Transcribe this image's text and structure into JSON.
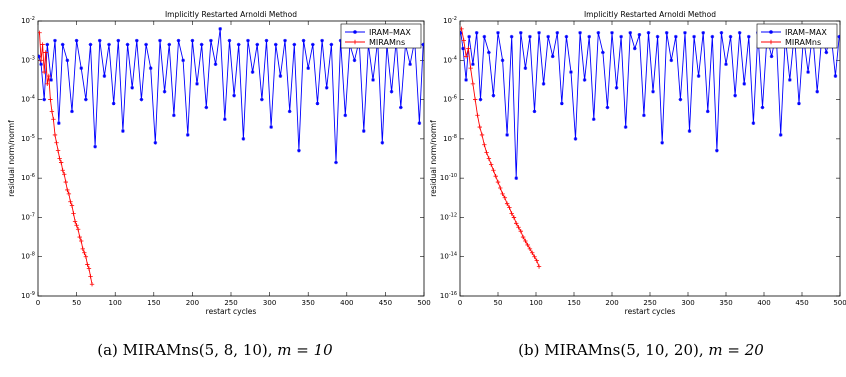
{
  "chart_data": [
    {
      "type": "line",
      "title": "Implicitly Restarted Arnoldi Method",
      "xlabel": "restart cycles",
      "ylabel": "residual norm/normf",
      "xlim": [
        0,
        500
      ],
      "yscale": "log",
      "ylim_exp": [
        -9,
        -2
      ],
      "xticks": [
        0,
        50,
        100,
        150,
        200,
        250,
        300,
        350,
        400,
        450,
        500
      ],
      "yticks": [
        "10^-9",
        "10^-8",
        "10^-7",
        "10^-6",
        "10^-5",
        "10^-4",
        "10^-3",
        "10^-2"
      ],
      "legend": "top-right",
      "caption_text": "(a) MIRAMns(5, 8, 10), ",
      "caption_math": "m = 10",
      "series": [
        {
          "name": "IRAM–MAX",
          "color": "#0000ff",
          "marker": "*",
          "x": [
            1,
            4,
            8,
            12,
            17,
            22,
            27,
            32,
            38,
            44,
            50,
            56,
            62,
            68,
            74,
            80,
            86,
            92,
            98,
            104,
            110,
            116,
            122,
            128,
            134,
            140,
            146,
            152,
            158,
            164,
            170,
            176,
            182,
            188,
            194,
            200,
            206,
            212,
            218,
            224,
            230,
            236,
            242,
            248,
            254,
            260,
            266,
            272,
            278,
            284,
            290,
            296,
            302,
            308,
            314,
            320,
            326,
            332,
            338,
            344,
            350,
            356,
            362,
            368,
            374,
            380,
            386,
            392,
            398,
            404,
            410,
            416,
            422,
            428,
            434,
            440,
            446,
            452,
            458,
            464,
            470,
            476,
            482,
            488,
            494,
            499
          ],
          "log10_y": [
            -2.9,
            -3.1,
            -4.0,
            -2.6,
            -3.5,
            -2.5,
            -4.6,
            -2.6,
            -3.0,
            -4.3,
            -2.5,
            -3.2,
            -4.0,
            -2.6,
            -5.2,
            -2.5,
            -3.4,
            -2.6,
            -4.1,
            -2.5,
            -4.8,
            -2.6,
            -3.7,
            -2.5,
            -4.0,
            -2.6,
            -3.2,
            -5.1,
            -2.5,
            -3.8,
            -2.6,
            -4.4,
            -2.5,
            -3.0,
            -4.9,
            -2.5,
            -3.6,
            -2.6,
            -4.2,
            -2.5,
            -3.1,
            -2.2,
            -4.5,
            -2.5,
            -3.9,
            -2.6,
            -5.0,
            -2.5,
            -3.3,
            -2.6,
            -4.0,
            -2.5,
            -4.7,
            -2.6,
            -3.4,
            -2.5,
            -4.3,
            -2.6,
            -5.3,
            -2.5,
            -3.2,
            -2.6,
            -4.1,
            -2.5,
            -3.7,
            -2.6,
            -5.6,
            -2.5,
            -4.4,
            -2.6,
            -3.0,
            -2.5,
            -4.8,
            -2.6,
            -3.5,
            -2.5,
            -5.1,
            -2.6,
            -3.8,
            -2.5,
            -4.2,
            -2.6,
            -3.1,
            -2.5,
            -4.6,
            -2.6
          ]
        },
        {
          "name": "MIRAMns",
          "color": "#ff0000",
          "marker": "+",
          "x": [
            2,
            4,
            6,
            8,
            10,
            12,
            14,
            16,
            18,
            20,
            22,
            24,
            26,
            28,
            30,
            32,
            34,
            36,
            38,
            40,
            42,
            44,
            46,
            48,
            50,
            52,
            54,
            56,
            58,
            60,
            62,
            64,
            66,
            68,
            70
          ],
          "log10_y": [
            -2.3,
            -3.0,
            -2.6,
            -3.3,
            -2.8,
            -3.6,
            -3.4,
            -4.0,
            -4.3,
            -4.5,
            -4.9,
            -5.1,
            -5.3,
            -5.5,
            -5.6,
            -5.8,
            -5.9,
            -6.1,
            -6.3,
            -6.4,
            -6.6,
            -6.7,
            -6.9,
            -7.1,
            -7.2,
            -7.3,
            -7.5,
            -7.6,
            -7.8,
            -7.9,
            -8.0,
            -8.2,
            -8.3,
            -8.5,
            -8.7
          ]
        }
      ]
    },
    {
      "type": "line",
      "title": "Implicitly Restarted Arnoldi Method",
      "xlabel": "restart cycles",
      "ylabel": "residual norm/normf",
      "xlim": [
        0,
        500
      ],
      "yscale": "log",
      "ylim_exp": [
        -16,
        -2
      ],
      "xticks": [
        0,
        50,
        100,
        150,
        200,
        250,
        300,
        350,
        400,
        450,
        500
      ],
      "yticks": [
        "10^-16",
        "10^-14",
        "10^-12",
        "10^-10",
        "10^-8",
        "10^-6",
        "10^-4",
        "10^-2"
      ],
      "legend": "top-right",
      "caption_text": "(b) MIRAMns(5, 10, 20), ",
      "caption_math": "m = 20",
      "series": [
        {
          "name": "IRAM–MAX",
          "color": "#0000ff",
          "marker": "*",
          "x": [
            1,
            4,
            8,
            12,
            17,
            22,
            27,
            32,
            38,
            44,
            50,
            56,
            62,
            68,
            74,
            80,
            86,
            92,
            98,
            104,
            110,
            116,
            122,
            128,
            134,
            140,
            146,
            152,
            158,
            164,
            170,
            176,
            182,
            188,
            194,
            200,
            206,
            212,
            218,
            224,
            230,
            236,
            242,
            248,
            254,
            260,
            266,
            272,
            278,
            284,
            290,
            296,
            302,
            308,
            314,
            320,
            326,
            332,
            338,
            344,
            350,
            356,
            362,
            368,
            374,
            380,
            386,
            392,
            398,
            404,
            410,
            416,
            422,
            428,
            434,
            440,
            446,
            452,
            458,
            464,
            470,
            476,
            482,
            488,
            494,
            499
          ],
          "log10_y": [
            -2.6,
            -3.4,
            -5.0,
            -2.8,
            -4.2,
            -2.6,
            -6.0,
            -2.8,
            -3.6,
            -5.8,
            -2.6,
            -4.0,
            -7.8,
            -2.8,
            -10.0,
            -2.6,
            -4.4,
            -2.8,
            -6.6,
            -2.6,
            -5.2,
            -2.8,
            -3.8,
            -2.6,
            -6.2,
            -2.8,
            -4.6,
            -8.0,
            -2.6,
            -5.0,
            -2.8,
            -7.0,
            -2.6,
            -3.6,
            -6.4,
            -2.6,
            -5.4,
            -2.8,
            -7.4,
            -2.6,
            -3.4,
            -2.7,
            -6.8,
            -2.6,
            -5.6,
            -2.8,
            -8.2,
            -2.6,
            -4.0,
            -2.8,
            -6.0,
            -2.6,
            -7.6,
            -2.8,
            -4.8,
            -2.6,
            -6.6,
            -2.8,
            -8.6,
            -2.6,
            -4.2,
            -2.8,
            -5.8,
            -2.6,
            -5.2,
            -2.8,
            -7.2,
            -2.6,
            -6.4,
            -2.8,
            -3.8,
            -2.6,
            -7.8,
            -2.8,
            -5.0,
            -2.6,
            -6.2,
            -2.8,
            -4.6,
            -2.6,
            -5.6,
            -2.8,
            -3.6,
            -2.6,
            -4.8,
            -2.8
          ]
        },
        {
          "name": "MIRAMns",
          "color": "#ff0000",
          "marker": "+",
          "x": [
            2,
            5,
            8,
            11,
            14,
            17,
            20,
            23,
            26,
            29,
            32,
            35,
            38,
            41,
            44,
            47,
            50,
            53,
            56,
            59,
            62,
            65,
            68,
            71,
            74,
            77,
            80,
            83,
            86,
            89,
            92,
            95,
            98,
            101,
            104
          ],
          "log10_y": [
            -2.4,
            -3.0,
            -3.8,
            -3.4,
            -4.4,
            -5.2,
            -6.0,
            -6.8,
            -7.4,
            -7.8,
            -8.3,
            -8.7,
            -9.0,
            -9.3,
            -9.6,
            -9.9,
            -10.2,
            -10.5,
            -10.8,
            -11.0,
            -11.3,
            -11.5,
            -11.8,
            -12.0,
            -12.3,
            -12.5,
            -12.7,
            -13.0,
            -13.2,
            -13.4,
            -13.6,
            -13.8,
            -14.0,
            -14.2,
            -14.5
          ]
        }
      ]
    }
  ]
}
